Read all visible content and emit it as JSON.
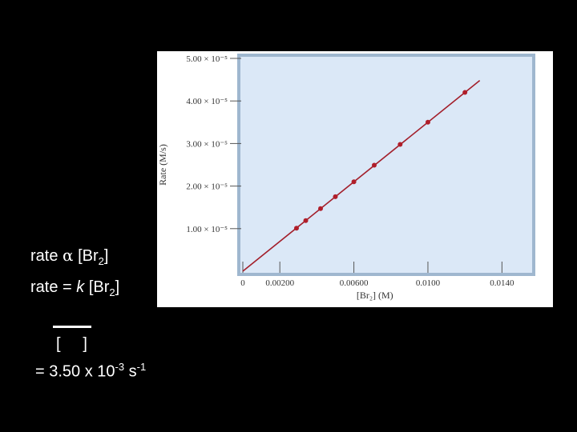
{
  "slide": {
    "line1": {
      "prefix": "rate ",
      "symbol": "α",
      "middle": " [Br",
      "sub": "2",
      "suffix": "]"
    },
    "line2": {
      "prefix": "rate = ",
      "k": "k",
      "middle": " [Br",
      "sub": "2",
      "suffix": "]"
    },
    "brackets": "[     ]",
    "result": {
      "prefix": "= 3.50 x 10",
      "exp1": "-3",
      "mid": " s",
      "exp2": "-1"
    }
  },
  "chart_data": {
    "type": "scatter",
    "title": "",
    "xlabel": "[Br₂] (M)",
    "ylabel": "Rate (M/s)",
    "xlim": [
      0,
      0.0155
    ],
    "ylim": [
      0,
      5e-05
    ],
    "x_ticks": [
      0,
      0.002,
      0.006,
      0.01,
      0.014
    ],
    "x_tick_labels": [
      "0",
      "0.00200",
      "0.00600",
      "0.0100",
      "0.0140"
    ],
    "y_ticks": [
      1e-05,
      2e-05,
      3e-05,
      4e-05,
      5e-05
    ],
    "y_tick_labels": [
      "1.00 × 10⁻⁵",
      "2.00 × 10⁻⁵",
      "3.00 × 10⁻⁵",
      "4.00 × 10⁻⁵",
      "5.00 × 10⁻⁵"
    ],
    "series": [
      {
        "x": [
          0.0029,
          0.0034,
          0.0042,
          0.005,
          0.006,
          0.0071,
          0.0085,
          0.01,
          0.012
        ],
        "y": [
          1.01e-05,
          1.19e-05,
          1.47e-05,
          1.75e-05,
          2.1e-05,
          2.49e-05,
          2.98e-05,
          3.5e-05,
          4.2e-05
        ]
      }
    ],
    "fit_line": {
      "x": [
        0,
        0.0128
      ],
      "y": [
        0,
        4.48e-05
      ]
    },
    "grid": false,
    "plot_background": "#dbe8f7",
    "frame_color": "#9fb7cf",
    "point_color": "#b01e2a",
    "line_color": "#a31f2b"
  }
}
